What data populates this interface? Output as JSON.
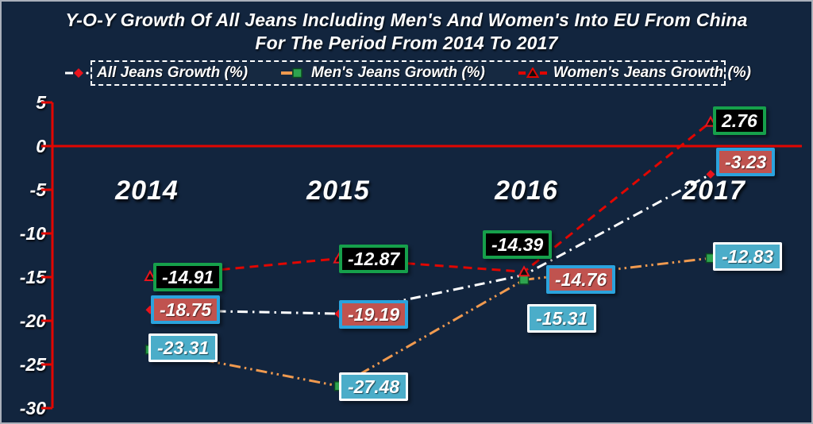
{
  "header": {
    "title_line1": "Y-O-Y Growth Of All Jeans Including Men's And Women's Into EU From China",
    "title_line2": "For The Period From 2014 To 2017"
  },
  "chart_data": {
    "type": "line",
    "title": "Y-O-Y Growth Of All Jeans Including Men's And Women's Into EU From China For The Period From 2014 To 2017",
    "categories": [
      "2014",
      "2015",
      "2016",
      "2017"
    ],
    "series": [
      {
        "name": "All Jeans Growth (%)",
        "values": [
          -18.75,
          -19.19,
          -14.76,
          -3.23
        ],
        "color": "#ffffff",
        "line_style": "dash-dot",
        "marker": "red-diamond",
        "label_box": {
          "bg": "#c0534f",
          "border": "#2ba3dd"
        }
      },
      {
        "name": "Men's Jeans Growth (%)",
        "values": [
          -23.31,
          -27.48,
          -15.31,
          -12.83
        ],
        "color": "#f09a4f",
        "line_style": "dash-dot-dot",
        "marker": "green-square",
        "label_box": {
          "bg": "#4badc9",
          "border": "#ffffff"
        }
      },
      {
        "name": "Women's Jeans Growth (%)",
        "values": [
          -14.91,
          -12.87,
          -14.39,
          2.76
        ],
        "color": "#e10600",
        "line_style": "dashed",
        "marker": "red-triangle",
        "label_box": {
          "bg": "#000000",
          "border": "#16a04b"
        }
      }
    ],
    "yticks": [
      5,
      0,
      -5,
      -10,
      -15,
      -20,
      -25,
      -30
    ],
    "ylim": [
      -30,
      5
    ],
    "axis_color": "#e10600",
    "zero_line": true,
    "legend_position": "top",
    "grid": false
  }
}
